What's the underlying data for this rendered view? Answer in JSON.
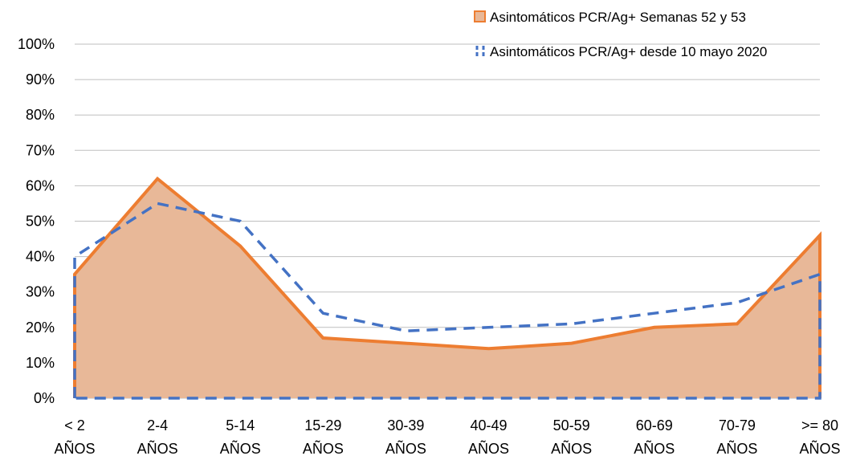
{
  "chart_data": {
    "type": "area",
    "categories": [
      [
        "< 2",
        "AÑOS"
      ],
      [
        "2-4",
        "AÑOS"
      ],
      [
        "5-14",
        "AÑOS"
      ],
      [
        "15-29",
        "AÑOS"
      ],
      [
        "30-39",
        "AÑOS"
      ],
      [
        "40-49",
        "AÑOS"
      ],
      [
        "50-59",
        "AÑOS"
      ],
      [
        "60-69",
        "AÑOS"
      ],
      [
        "70-79",
        "AÑOS"
      ],
      [
        ">= 80",
        "AÑOS"
      ]
    ],
    "series": [
      {
        "name": "Asintomáticos PCR/Ag+ Semanas 52 y 53",
        "style": "area",
        "fill": "#E8B898",
        "stroke": "#ED7D31",
        "values": [
          35,
          62,
          43,
          17,
          15.5,
          14,
          15.5,
          20,
          21,
          46
        ]
      },
      {
        "name": "Asintomáticos PCR/Ag+ desde 10 mayo 2020",
        "style": "dashed-area",
        "fill": "none",
        "stroke": "#4472C4",
        "values": [
          40,
          55,
          50,
          24,
          19,
          20,
          21,
          24,
          27,
          35
        ]
      }
    ],
    "y_ticks": [
      "0%",
      "10%",
      "20%",
      "30%",
      "40%",
      "50%",
      "60%",
      "70%",
      "80%",
      "90%",
      "100%"
    ],
    "ylim": [
      0,
      100
    ],
    "grid": true,
    "legend_position": "top-right"
  }
}
